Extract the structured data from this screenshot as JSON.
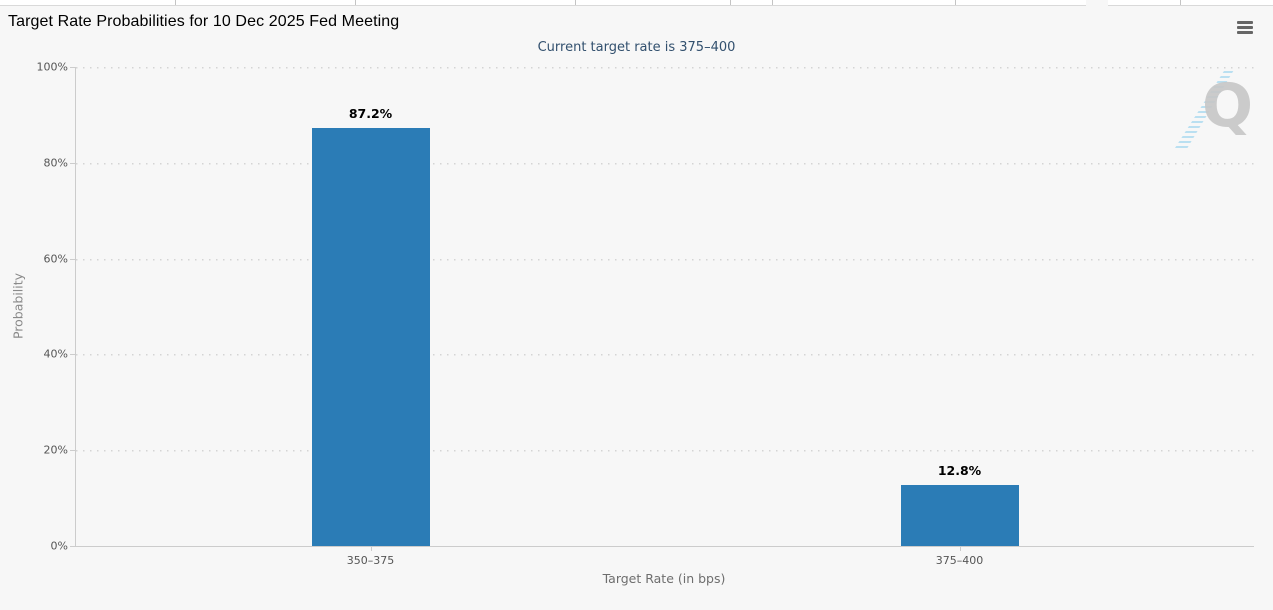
{
  "header": {
    "title": "Target Rate Probabilities for 10 Dec 2025 Fed Meeting",
    "subtitle": "Current target rate is 375–400",
    "menu_icon": "hamburger-menu-icon"
  },
  "chart_data": {
    "type": "bar",
    "title": "Target Rate Probabilities for 10 Dec 2025 Fed Meeting",
    "subtitle": "Current target rate is 375–400",
    "categories": [
      "350–375",
      "375–400"
    ],
    "values": [
      87.2,
      12.8
    ],
    "value_labels": [
      "87.2%",
      "12.8%"
    ],
    "xlabel": "Target Rate (in bps)",
    "ylabel": "Probability",
    "ylim": [
      0,
      100
    ],
    "yticks": [
      0,
      20,
      40,
      60,
      80,
      100
    ],
    "ytick_labels": [
      "0%",
      "20%",
      "40%",
      "60%",
      "80%",
      "100%"
    ],
    "grid": "dotted horizontal",
    "legend": "none",
    "bar_color": "#2b7cb6",
    "background_color": "#f7f7f7",
    "subtitle_color": "#32506e"
  },
  "top_tab_strip": {
    "description": "cropped row of meeting-date tabs"
  },
  "watermark": {
    "letter": "Q"
  }
}
